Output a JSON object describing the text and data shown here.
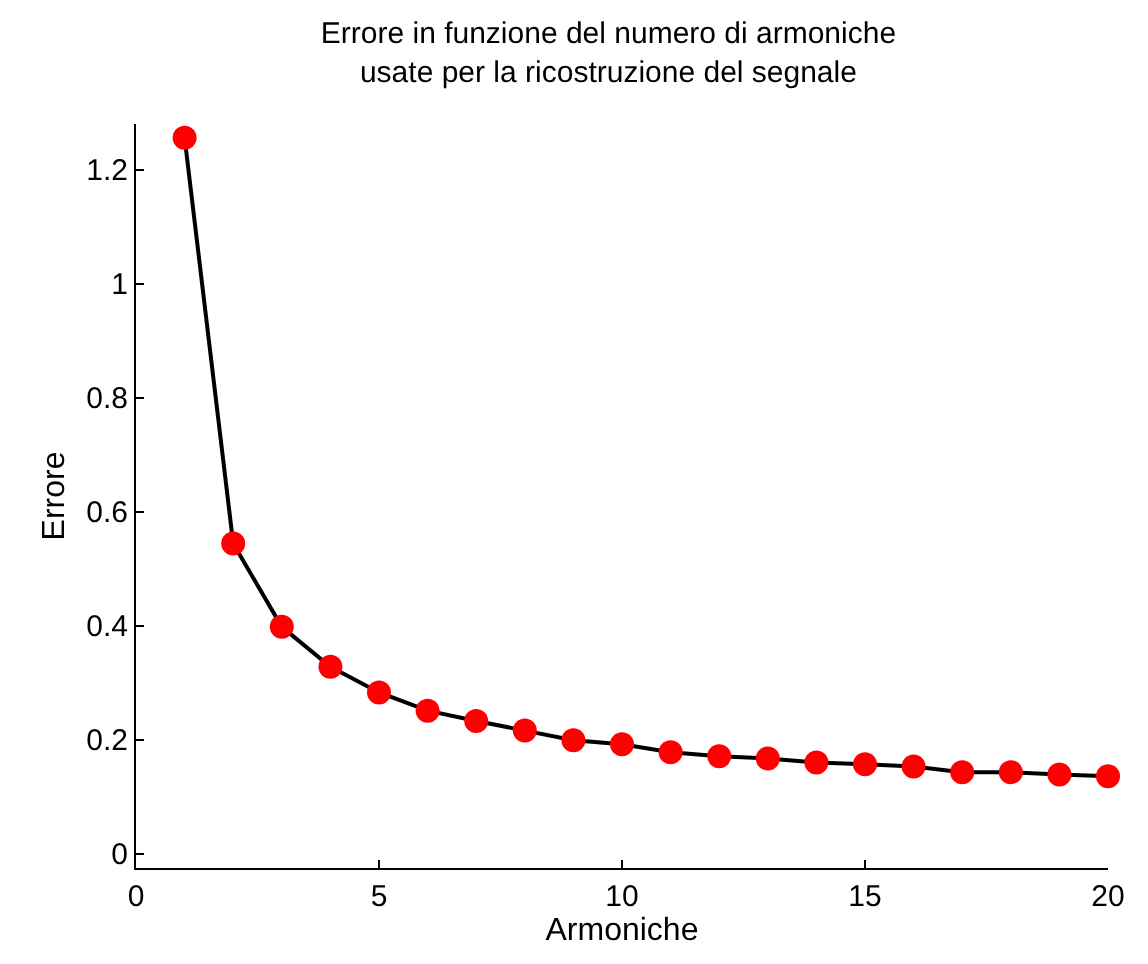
{
  "chart_data": {
    "type": "line",
    "title": "Errore in funzione del numero di armoniche\nusate per la ricostruzione del segnale",
    "xlabel": "Armoniche",
    "ylabel": "Errore",
    "x": [
      1,
      2,
      3,
      4,
      5,
      6,
      7,
      8,
      9,
      10,
      11,
      12,
      13,
      14,
      15,
      16,
      17,
      18,
      19,
      20
    ],
    "series": [
      {
        "color": "#000000",
        "values": [
          1.256,
          0.544,
          0.398,
          0.328,
          0.283,
          0.251,
          0.233,
          0.216,
          0.199,
          0.192,
          0.178,
          0.171,
          0.167,
          0.16,
          0.157,
          0.153,
          0.143,
          0.143,
          0.139,
          0.136
        ],
        "colors": [
          "#ff0000",
          "#ff0000",
          "#ff0000",
          "#ff0000",
          "#ff0000",
          "#ff0000",
          "#ff0000",
          "#ff0000",
          "#ff0000",
          "#ff0000",
          "#ff0000",
          "#ff0000",
          "#ff0000",
          "#ff0000",
          "#ff0000",
          "#ff0000",
          "#ff0000",
          "#ff0000",
          "#ff0000",
          "#ff0000"
        ]
      }
    ],
    "xlim": [
      0,
      20
    ],
    "ylim": [
      -0.025,
      1.28
    ],
    "xticks": [
      0,
      5,
      10,
      15,
      20
    ],
    "yticks": [
      0,
      0.2,
      0.4,
      0.6,
      0.8,
      1,
      1.2
    ],
    "marker": "circle",
    "line_style": "solid"
  }
}
